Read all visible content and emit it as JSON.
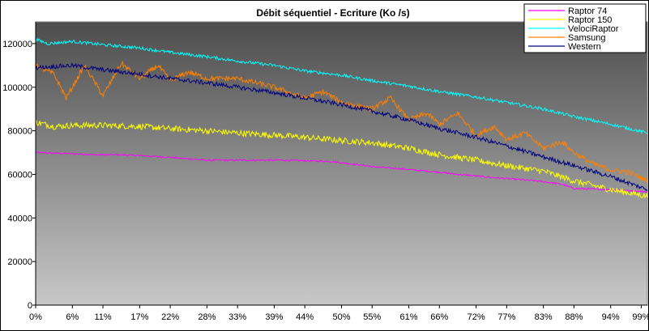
{
  "chart_data": {
    "type": "line",
    "title": "Débit séquentiel - Ecriture (Ko /s)",
    "xlabel": "",
    "ylabel": "",
    "ylim": [
      0,
      130000
    ],
    "yticks": [
      0,
      20000,
      40000,
      60000,
      80000,
      100000,
      120000
    ],
    "ytick_labels": [
      "0",
      "20000",
      "40000",
      "60000",
      "80000",
      "100000",
      "120000"
    ],
    "xticks": [
      0,
      6,
      11,
      17,
      22,
      28,
      33,
      39,
      44,
      50,
      55,
      61,
      66,
      72,
      77,
      83,
      88,
      94,
      99
    ],
    "xtick_labels": [
      "0%",
      "6%",
      "11%",
      "17%",
      "22%",
      "28%",
      "33%",
      "39%",
      "44%",
      "50%",
      "55%",
      "61%",
      "66%",
      "72%",
      "77%",
      "83%",
      "88%",
      "94%",
      "99%"
    ],
    "legend_position": "top-right",
    "grid": false,
    "series": [
      {
        "name": "Raptor 74",
        "color": "#ff00ff",
        "x": [
          0,
          6,
          10,
          14,
          18,
          22,
          28,
          33,
          40,
          48,
          54,
          55,
          60,
          66,
          69,
          75,
          82,
          86,
          88,
          94,
          100
        ],
        "y": [
          70000,
          69500,
          69000,
          69000,
          68500,
          67800,
          66500,
          66500,
          66500,
          66000,
          64000,
          63500,
          62500,
          61000,
          60000,
          58500,
          57000,
          55500,
          53500,
          53000,
          52000
        ]
      },
      {
        "name": "Raptor 150",
        "color": "#ffff00",
        "x": [
          0,
          3,
          6,
          11,
          17,
          22,
          28,
          33,
          39,
          44,
          50,
          55,
          61,
          66,
          72,
          77,
          83,
          88,
          94,
          100
        ],
        "y": [
          84000,
          82000,
          82500,
          82500,
          82000,
          81000,
          80000,
          79000,
          78000,
          77000,
          75500,
          74500,
          72000,
          69000,
          66500,
          64000,
          61500,
          57000,
          53000,
          50000
        ]
      },
      {
        "name": "VelociRaptor",
        "color": "#00ffff",
        "x": [
          0,
          2,
          6,
          11,
          17,
          22,
          28,
          33,
          39,
          44,
          50,
          55,
          61,
          66,
          72,
          77,
          83,
          88,
          94,
          100
        ],
        "y": [
          122000,
          120000,
          121000,
          119500,
          118000,
          116000,
          114000,
          112000,
          110000,
          107500,
          105500,
          103000,
          100500,
          98000,
          95500,
          93000,
          90000,
          86500,
          83000,
          79000
        ]
      },
      {
        "name": "Samsung",
        "color": "#ff8000",
        "x": [
          0,
          3,
          5,
          8,
          11,
          14,
          17,
          20,
          22,
          25,
          28,
          33,
          39,
          44,
          47,
          50,
          55,
          58,
          61,
          64,
          66,
          69,
          72,
          75,
          77,
          80,
          83,
          86,
          88,
          91,
          94,
          97,
          100
        ],
        "y": [
          110000,
          106000,
          95000,
          110000,
          96000,
          111000,
          104000,
          110000,
          103000,
          107000,
          104000,
          104000,
          100000,
          95000,
          98000,
          93000,
          90000,
          95000,
          85000,
          88000,
          83000,
          88000,
          78000,
          82000,
          76000,
          79000,
          72000,
          75000,
          70000,
          65000,
          62000,
          61000,
          57000
        ]
      },
      {
        "name": "Western",
        "color": "#000080",
        "x": [
          0,
          6,
          11,
          17,
          22,
          28,
          33,
          39,
          44,
          50,
          55,
          61,
          66,
          72,
          77,
          83,
          88,
          94,
          100
        ],
        "y": [
          109000,
          110000,
          108000,
          106000,
          104000,
          102000,
          100000,
          97500,
          95000,
          92000,
          89000,
          85000,
          81000,
          77000,
          73000,
          68000,
          64000,
          59000,
          53000
        ]
      }
    ]
  }
}
